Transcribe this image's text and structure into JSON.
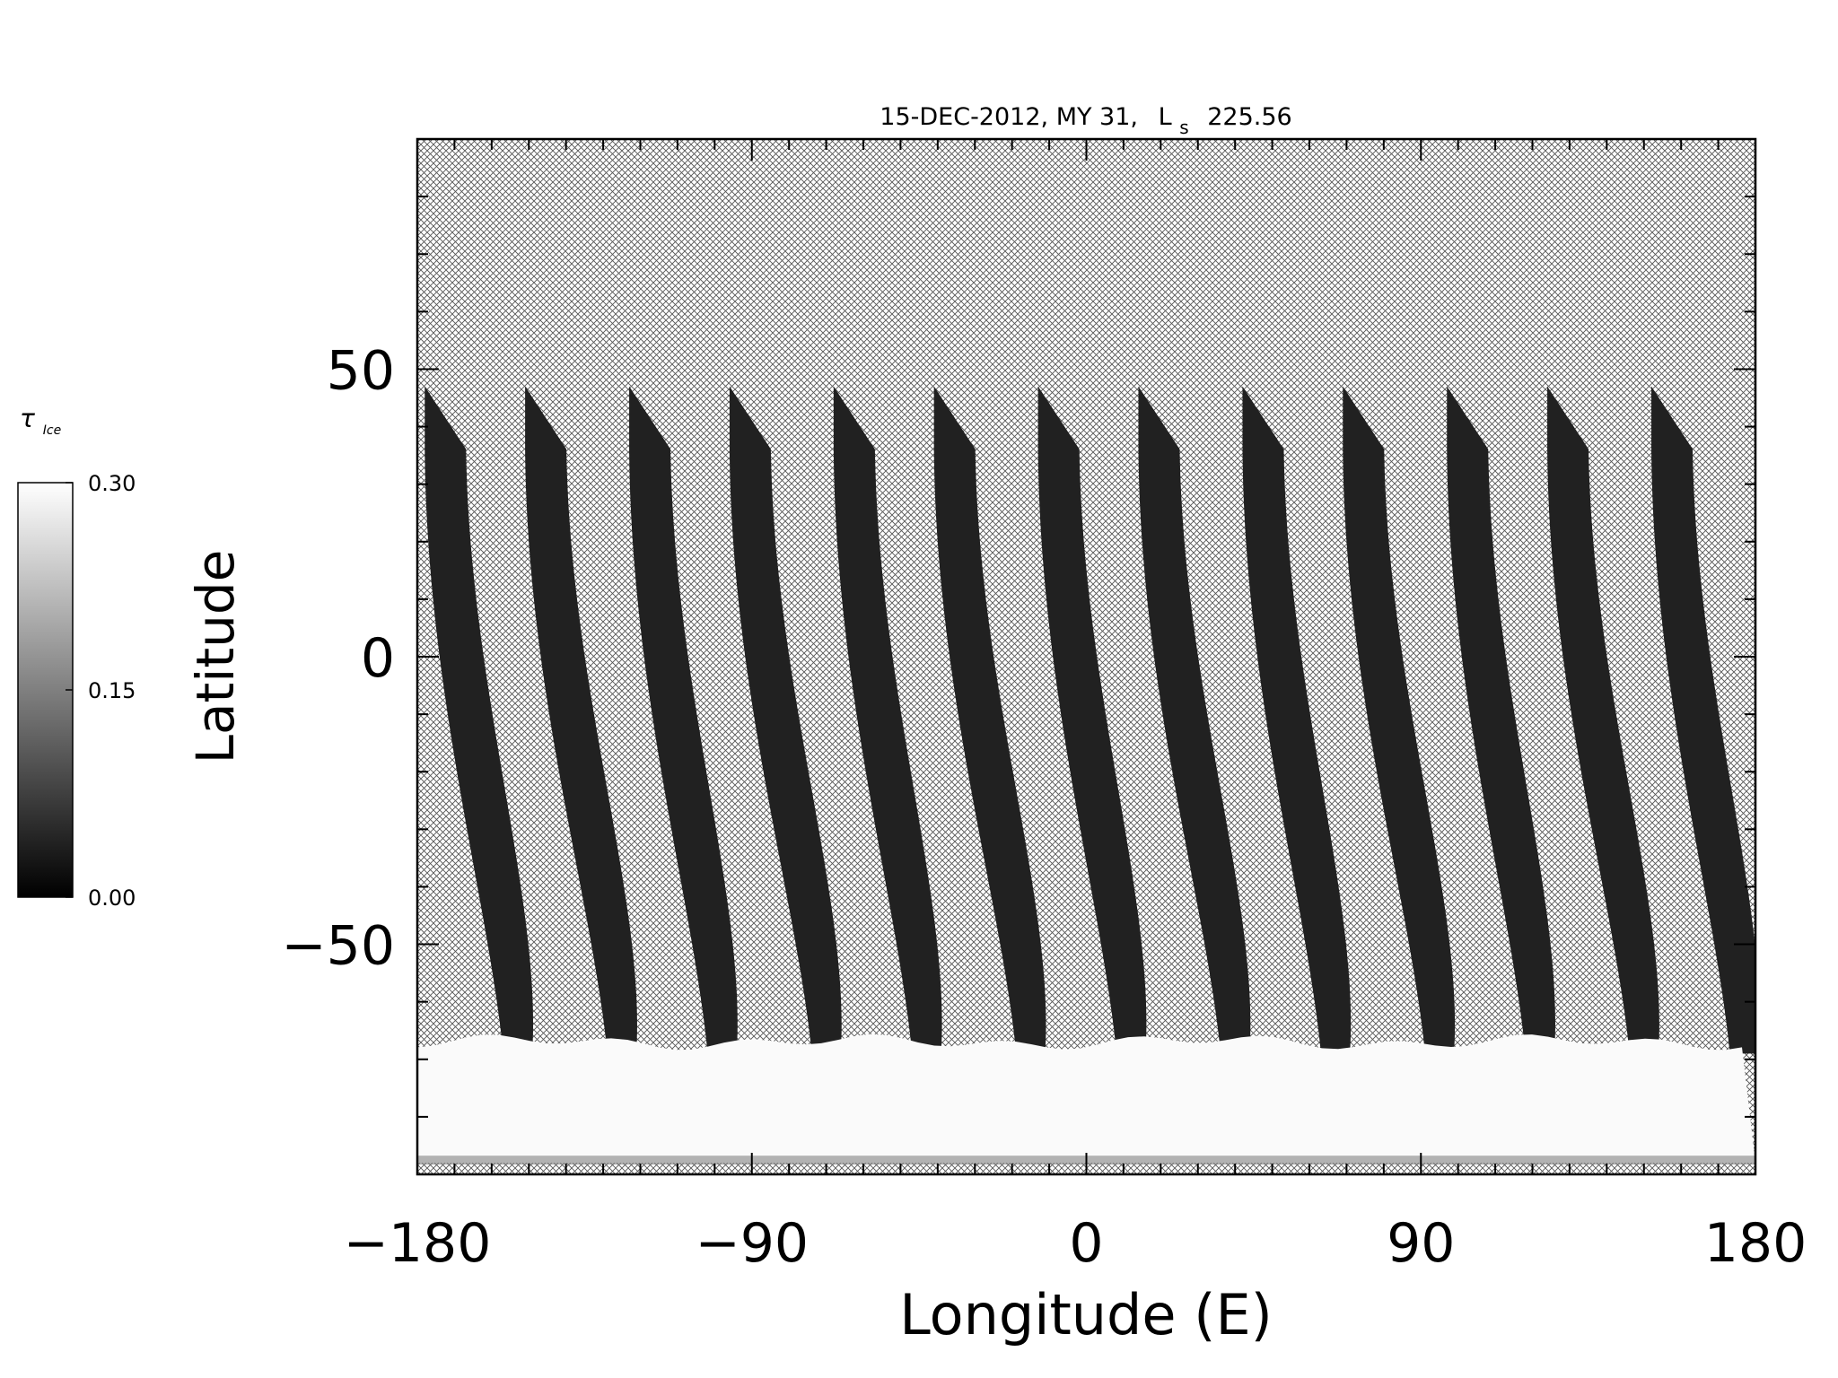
{
  "chart_data": {
    "type": "heatmap",
    "title": "15-DEC-2012, MY 31,",
    "title_ls_symbol": "L",
    "title_ls_subscript": "s",
    "title_ls_value": "225.56",
    "xlabel": "Longitude (E)",
    "ylabel": "Latitude",
    "xlim": [
      -180,
      180
    ],
    "ylim": [
      -90,
      90
    ],
    "xticks": [
      -180,
      -90,
      0,
      90,
      180
    ],
    "xtick_labels": [
      "−180",
      "−90",
      "0",
      "90",
      "180"
    ],
    "yticks": [
      -50,
      0,
      50
    ],
    "ytick_labels": [
      "−50",
      "0",
      "50"
    ],
    "x_minor_step": 10,
    "y_minor_step": 10,
    "colorbar": {
      "symbol": "τ",
      "subscript": "Ice",
      "min": 0.0,
      "max": 0.3,
      "ticks": [
        0.0,
        0.15,
        0.3
      ],
      "tick_labels": [
        "0.00",
        "0.15",
        "0.30"
      ],
      "colormap": "grayscale"
    },
    "no_data_pattern": "crosshatch",
    "swaths": {
      "count": 13,
      "top_latitude": 47,
      "bottom_latitude": -69,
      "top_longitudes": [
        -178,
        -151,
        -123,
        -96,
        -68,
        -41,
        -13,
        14,
        42,
        69,
        97,
        124,
        152
      ],
      "bottom_longitudes": [
        -153,
        -125,
        -98,
        -70,
        -43,
        -15,
        12,
        40,
        67,
        95,
        122,
        150,
        177
      ],
      "value": 0.02
    },
    "polar_band": {
      "latitude_top": -67,
      "latitude_bottom": -88,
      "value": 0.3
    }
  }
}
